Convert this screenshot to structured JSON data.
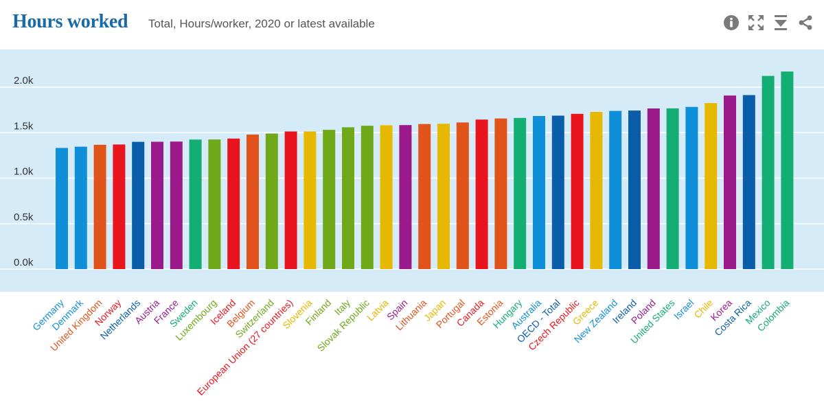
{
  "header": {
    "title": "Hours worked",
    "subtitle": "Total, Hours/worker, 2020 or latest available"
  },
  "toolbar": {
    "icons": [
      "info-icon",
      "fullscreen-icon",
      "download-icon",
      "share-icon"
    ],
    "icon_color": "#7a7a7a"
  },
  "chart_data": {
    "type": "bar",
    "title": "Hours worked",
    "subtitle": "Total, Hours/worker, 2020 or latest available",
    "xlabel": "",
    "ylabel": "",
    "ylim": [
      -250,
      2300
    ],
    "yticks": [
      0,
      500,
      1000,
      1500,
      2000
    ],
    "ytick_labels": [
      "0.0k",
      "0.5k",
      "1.0k",
      "1.5k",
      "2.0k"
    ],
    "grid": true,
    "plot_background": "#d6ebf8",
    "categories": [
      "Germany",
      "Denmark",
      "United Kingdom",
      "Norway",
      "Netherlands",
      "Austria",
      "France",
      "Sweden",
      "Luxembourg",
      "Iceland",
      "Belgium",
      "Switzerland",
      "European Union (27 countries)",
      "Slovenia",
      "Finland",
      "Italy",
      "Slovak Republic",
      "Latvia",
      "Spain",
      "Lithuania",
      "Japan",
      "Portugal",
      "Canada",
      "Estonia",
      "Hungary",
      "Australia",
      "OECD - Total",
      "Czech Republic",
      "Greece",
      "New Zealand",
      "Ireland",
      "Poland",
      "United States",
      "Israel",
      "Chile",
      "Korea",
      "Costa Rica",
      "Mexico",
      "Colombia"
    ],
    "values": [
      1332,
      1346,
      1367,
      1370,
      1399,
      1400,
      1402,
      1424,
      1425,
      1435,
      1479,
      1490,
      1513,
      1513,
      1531,
      1559,
      1576,
      1581,
      1583,
      1595,
      1598,
      1612,
      1644,
      1656,
      1662,
      1683,
      1687,
      1707,
      1728,
      1739,
      1743,
      1766,
      1767,
      1783,
      1825,
      1908,
      1913,
      2124,
      2172
    ],
    "colors": [
      "#0f8fd8",
      "#0f8fd8",
      "#e0531b",
      "#e8141e",
      "#0a5da8",
      "#9a1a8c",
      "#9a1a8c",
      "#14ad74",
      "#6fa819",
      "#e8141e",
      "#e0531b",
      "#6fa819",
      "#e8141e",
      "#e6b800",
      "#6fa819",
      "#6fa819",
      "#6fa819",
      "#e6b800",
      "#9a1a8c",
      "#e0531b",
      "#e6b800",
      "#e0531b",
      "#e8141e",
      "#e0531b",
      "#14ad74",
      "#0f8fd8",
      "#0a5da8",
      "#e8141e",
      "#e6b800",
      "#0f8fd8",
      "#0a5da8",
      "#9a1a8c",
      "#14ad74",
      "#0f8fd8",
      "#e6b800",
      "#9a1a8c",
      "#0a5da8",
      "#14ad74",
      "#14ad74"
    ]
  }
}
